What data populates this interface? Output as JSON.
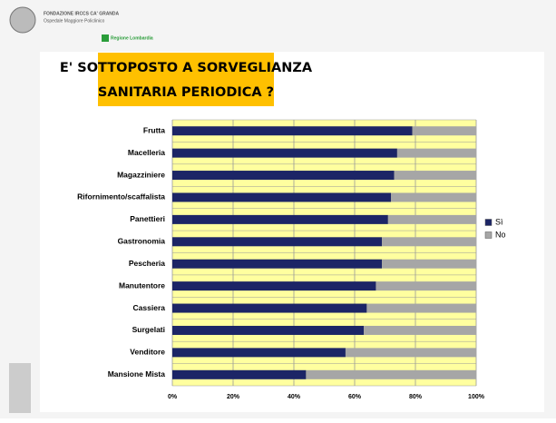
{
  "header": {
    "institution": "FONDAZIONE IRCCS CA' GRANDA",
    "hospital": "Ospedale Maggiore Policlinico",
    "region": "Regione Lombardia"
  },
  "chart_data": {
    "type": "bar",
    "orientation": "horizontal",
    "stacked": true,
    "title": "E' SOTTOPOSTO A SORVEGLIANZA SANITARIA PERIODICA ?",
    "categories": [
      "Frutta",
      "Macelleria",
      "Magazziniere",
      "Rifornimento/scaffalista",
      "Panettieri",
      "Gastronomia",
      "Pescheria",
      "Manutentore",
      "Cassiera",
      "Surgelati",
      "Venditore",
      "Mansione Mista"
    ],
    "series": [
      {
        "name": "Sì",
        "color": "#1c2566",
        "values": [
          79,
          74,
          73,
          72,
          71,
          69,
          69,
          67,
          64,
          63,
          57,
          44
        ]
      },
      {
        "name": "No",
        "color": "#a6a6a6",
        "values": [
          21,
          26,
          27,
          28,
          29,
          31,
          31,
          33,
          36,
          37,
          43,
          56
        ]
      }
    ],
    "xlim": [
      0,
      100
    ],
    "xticks": [
      {
        "value": 0,
        "label": "0%"
      },
      {
        "value": 20,
        "label": "20%"
      },
      {
        "value": 40,
        "label": "40%"
      },
      {
        "value": 60,
        "label": "60%"
      },
      {
        "value": 80,
        "label": "80%"
      },
      {
        "value": 100,
        "label": "100%"
      }
    ],
    "grid": true,
    "legend": "right"
  }
}
